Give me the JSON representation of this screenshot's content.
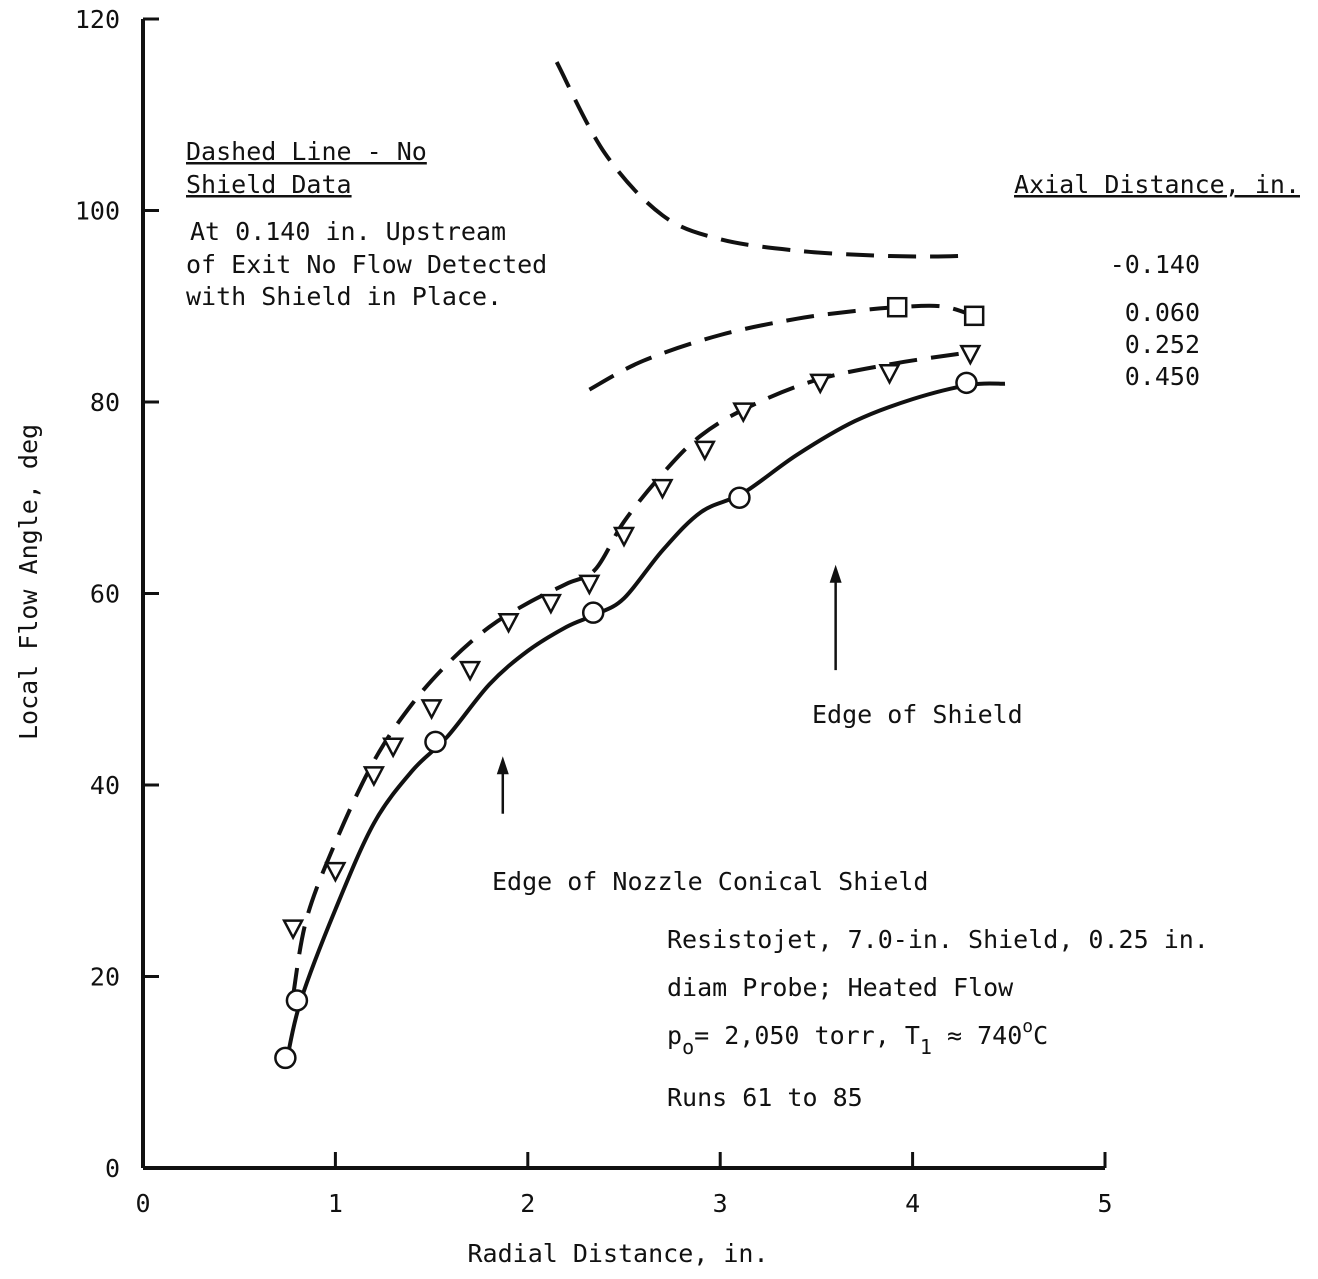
{
  "chart_data": {
    "type": "line",
    "xlabel": "Radial Distance, in.",
    "ylabel": "Local Flow Angle, deg",
    "xlim": [
      0,
      5
    ],
    "ylim": [
      0,
      120
    ],
    "x_ticks": [
      0,
      1,
      2,
      3,
      4,
      5
    ],
    "x_tick_labels": [
      "0",
      "1",
      "2",
      "3",
      "4",
      "5"
    ],
    "y_ticks": [
      0,
      20,
      40,
      60,
      80,
      100,
      120
    ],
    "y_tick_labels": [
      "0",
      "20",
      "40",
      "60",
      "80",
      "100",
      "120"
    ],
    "grid": false,
    "legend": {
      "title": "Axial Distance, in.",
      "entries": [
        "-0.140",
        "0.060",
        "0.252",
        "0.450"
      ]
    },
    "series": [
      {
        "name": "-0.140",
        "line": "dashed",
        "marker": "none",
        "x": [
          2.15,
          2.4,
          2.7,
          3.0,
          3.4,
          3.8,
          4.1,
          4.3
        ],
        "y": [
          115.5,
          106.0,
          99.5,
          97.0,
          95.8,
          95.3,
          95.2,
          95.3
        ]
      },
      {
        "name": "0.060",
        "line": "dashed",
        "marker": "square",
        "x": [
          2.32,
          2.6,
          3.0,
          3.4,
          3.7,
          3.92,
          4.15,
          4.32
        ],
        "y": [
          81.3,
          84.3,
          87.0,
          88.7,
          89.5,
          89.9,
          90.0,
          89.0
        ],
        "points": {
          "x": [
            3.92,
            4.32
          ],
          "y": [
            89.9,
            89.0
          ]
        }
      },
      {
        "name": "0.252",
        "line": "dashed",
        "marker": "triangle-down",
        "x": [
          0.78,
          0.85,
          1.0,
          1.2,
          1.4,
          1.6,
          1.8,
          2.0,
          2.2,
          2.35,
          2.5,
          2.7,
          2.9,
          3.15,
          3.5,
          3.9,
          4.3
        ],
        "y": [
          18.0,
          26.0,
          34.0,
          42.5,
          48.5,
          53.0,
          56.5,
          59.0,
          61.0,
          62.5,
          67.5,
          72.5,
          76.5,
          79.5,
          82.3,
          84.0,
          85.2
        ],
        "points": {
          "x": [
            0.78,
            1.0,
            1.2,
            1.3,
            1.5,
            1.7,
            1.9,
            2.12,
            2.32,
            2.5,
            2.7,
            2.92,
            3.12,
            3.52,
            3.88,
            4.3
          ],
          "y": [
            25.0,
            31.0,
            41.0,
            44.0,
            48.0,
            52.0,
            57.0,
            59.0,
            61.0,
            66.0,
            71.0,
            75.0,
            79.0,
            82.0,
            83.0,
            85.0
          ]
        }
      },
      {
        "name": "0.450",
        "line": "solid",
        "marker": "circle",
        "x": [
          0.75,
          0.82,
          1.0,
          1.2,
          1.4,
          1.58,
          1.8,
          2.0,
          2.2,
          2.35,
          2.5,
          2.7,
          2.9,
          3.12,
          3.4,
          3.7,
          4.0,
          4.3,
          4.48
        ],
        "y": [
          11.5,
          17.5,
          27.0,
          36.0,
          41.5,
          45.0,
          50.5,
          54.0,
          56.5,
          57.8,
          59.5,
          64.5,
          68.5,
          70.5,
          74.5,
          78.0,
          80.3,
          81.8,
          81.9
        ],
        "points": {
          "x": [
            0.74,
            0.8,
            1.52,
            2.34,
            3.1,
            4.28
          ],
          "y": [
            11.5,
            17.5,
            44.5,
            58.0,
            70.0,
            82.0
          ]
        }
      }
    ],
    "annotations": {
      "dashed_note_line1": "Dashed Line - No",
      "dashed_note_line2": "Shield Data",
      "upstream_note_line1": "At 0.140 in. Upstream",
      "upstream_note_line2": "of Exit No Flow Detected",
      "upstream_note_line3": "with Shield in Place.",
      "edge_of_shield": "Edge of Shield",
      "edge_of_nozzle": "Edge of Nozzle Conical Shield",
      "conditions_line1": "Resistojet, 7.0-in. Shield, 0.25 in.",
      "conditions_line2": "diam Probe; Heated Flow",
      "conditions_p": "p",
      "conditions_p_sub": "o",
      "conditions_p_rest": "= 2,050 torr, T",
      "conditions_t_sub": "1",
      "conditions_t_rest": " ≈ 740",
      "conditions_deg_sup": "o",
      "conditions_c": "C",
      "conditions_line4": "Runs 61 to 85"
    },
    "arrows": [
      {
        "label": "edge_of_shield",
        "x": 3.6,
        "y_from": 52,
        "y_to": 63
      },
      {
        "label": "edge_of_nozzle",
        "x": 1.87,
        "y_from": 37,
        "y_to": 43
      }
    ]
  }
}
